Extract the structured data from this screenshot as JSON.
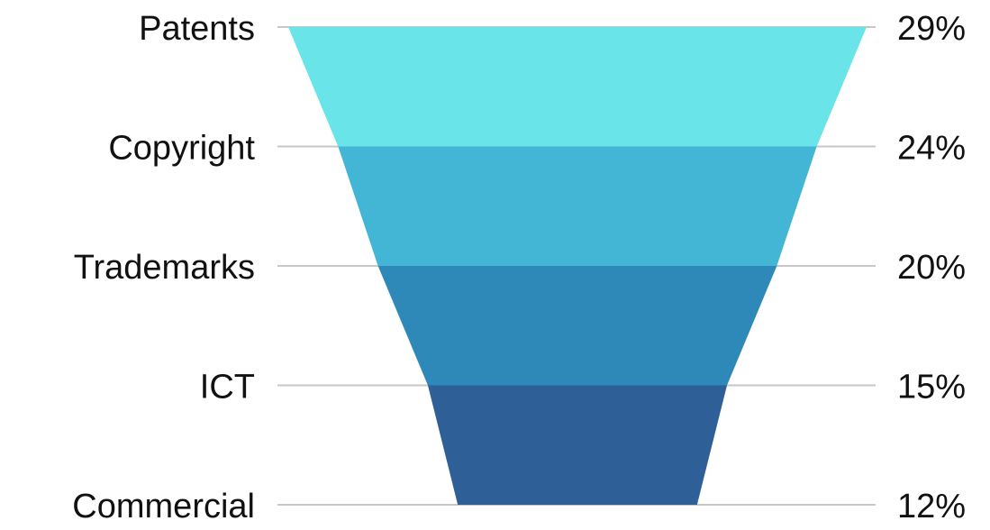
{
  "chart_data": {
    "type": "funnel",
    "categories": [
      "Patents",
      "Copyright",
      "Trademarks",
      "ICT",
      "Commercial"
    ],
    "values": [
      29,
      24,
      20,
      15,
      12
    ],
    "value_labels": [
      "29%",
      "24%",
      "20%",
      "15%",
      "12%"
    ],
    "colors": [
      "#69e4e8",
      "#43b5d5",
      "#2e89b8",
      "#2f5f97"
    ],
    "title": "",
    "xlabel": "",
    "ylabel": "",
    "legend": "none",
    "grid": false
  }
}
